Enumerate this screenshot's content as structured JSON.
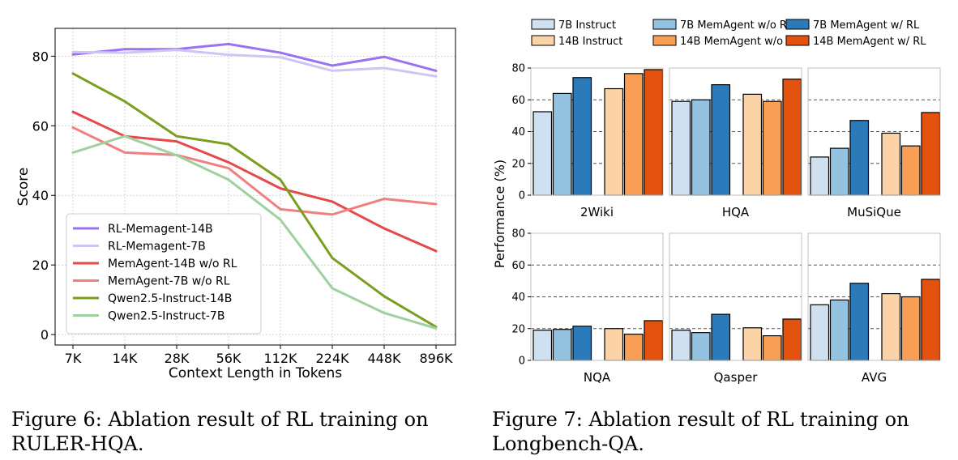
{
  "chart_data": [
    {
      "type": "line",
      "title": "",
      "xlabel": "Context Length in Tokens",
      "ylabel": "Score",
      "categories": [
        "7K",
        "14K",
        "28K",
        "56K",
        "112K",
        "224K",
        "448K",
        "896K"
      ],
      "ylim": [
        -3,
        88
      ],
      "yticks": [
        0,
        20,
        40,
        60,
        80
      ],
      "grid": true,
      "legend_position": "bottom-left",
      "series": [
        {
          "name": "RL-Memagent-14B",
          "color": "#9b72f2",
          "values": [
            80.5,
            82,
            82,
            83.5,
            81,
            77.3,
            79.8,
            75.8
          ]
        },
        {
          "name": "RL-Memagent-7B",
          "color": "#d0c4f4",
          "values": [
            81.2,
            81,
            81.8,
            80.4,
            79.7,
            75.8,
            76.6,
            74.2
          ]
        },
        {
          "name": "MemAgent-14B w/o RL",
          "color": "#e6494b",
          "values": [
            64,
            57,
            55.5,
            49.5,
            42,
            38.2,
            30.5,
            24
          ]
        },
        {
          "name": "MemAgent-7B w/o RL",
          "color": "#f08080",
          "values": [
            59.5,
            52.3,
            51.6,
            47.8,
            36,
            34.5,
            39,
            37.5
          ]
        },
        {
          "name": "Qwen2.5-Instruct-14B",
          "color": "#7a9e1f",
          "values": [
            75,
            67,
            57,
            54.7,
            44.5,
            22,
            11,
            2.2
          ]
        },
        {
          "name": "Qwen2.5-Instruct-7B",
          "color": "#9fd0a0",
          "values": [
            52.3,
            57,
            51.5,
            44.5,
            33,
            13.3,
            6.2,
            1.8
          ]
        }
      ]
    },
    {
      "type": "bar",
      "title": "",
      "ylabel": "Performance (%)",
      "ylim": [
        0,
        80
      ],
      "yticks": [
        0,
        20,
        40,
        60,
        80
      ],
      "legend_position": "top",
      "series": [
        {
          "name": "7B Instruct",
          "color": "#cfe1f1"
        },
        {
          "name": "7B MemAgent w/o RL",
          "color": "#93c3e0"
        },
        {
          "name": "7B MemAgent w/ RL",
          "color": "#2b7bbb"
        },
        {
          "name": "14B Instruct",
          "color": "#fcd3a6"
        },
        {
          "name": "14B MemAgent w/o RL",
          "color": "#f99f55"
        },
        {
          "name": "14B MemAgent w/ RL",
          "color": "#e3520f"
        }
      ],
      "panels": [
        {
          "name": "2Wiki",
          "values": [
            52.5,
            64,
            74,
            67,
            76.5,
            79
          ]
        },
        {
          "name": "HQA",
          "values": [
            59,
            60,
            69.5,
            63.5,
            59,
            73
          ]
        },
        {
          "name": "MuSiQue",
          "values": [
            24,
            29.5,
            47,
            39,
            31,
            52
          ]
        },
        {
          "name": "NQA",
          "values": [
            19,
            19.5,
            21.5,
            20,
            16.5,
            25
          ]
        },
        {
          "name": "Qasper",
          "values": [
            19,
            17.5,
            29,
            20.5,
            15.5,
            26
          ]
        },
        {
          "name": "AVG",
          "values": [
            35,
            38,
            48.5,
            42,
            40,
            51
          ]
        }
      ]
    }
  ],
  "captions": {
    "fig6_line1": "Figure 6:  Ablation result of RL training on",
    "fig6_line2": "RULER-HQA.",
    "fig7_line1": "Figure 7:  Ablation result of RL training on",
    "fig7_line2": "Longbench-QA."
  }
}
